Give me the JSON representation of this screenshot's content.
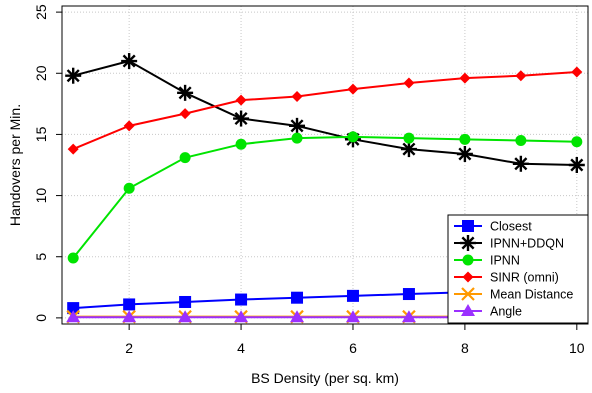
{
  "chart_data": {
    "type": "line",
    "title": "",
    "xlabel": "BS Density (per sq. km)",
    "ylabel": "Handovers per Min.",
    "xlim": [
      0.8,
      10.2
    ],
    "ylim": [
      -0.5,
      25.5
    ],
    "xticks": [
      2,
      4,
      6,
      8,
      10
    ],
    "yticks": [
      0,
      5,
      10,
      15,
      20,
      25
    ],
    "x": [
      1,
      2,
      3,
      4,
      5,
      6,
      7,
      8,
      9,
      10
    ],
    "grid": true,
    "legend_position": "bottom-right",
    "series": [
      {
        "name": "Closest",
        "color": "#0000ff",
        "marker": "square",
        "values": [
          0.8,
          1.1,
          1.3,
          1.5,
          1.65,
          1.8,
          1.95,
          2.1,
          2.25,
          2.4
        ]
      },
      {
        "name": "IPNN+DDQN",
        "color": "#000000",
        "marker": "asterisk",
        "values": [
          19.8,
          21.0,
          18.4,
          16.3,
          15.7,
          14.6,
          13.8,
          13.4,
          12.6,
          12.5
        ]
      },
      {
        "name": "IPNN",
        "color": "#00e400",
        "marker": "circle",
        "values": [
          4.9,
          10.6,
          13.1,
          14.2,
          14.7,
          14.8,
          14.7,
          14.6,
          14.5,
          14.4
        ]
      },
      {
        "name": "SINR (omni)",
        "color": "#ff0000",
        "marker": "diamond",
        "values": [
          13.8,
          15.7,
          16.7,
          17.8,
          18.1,
          18.7,
          19.2,
          19.6,
          19.8,
          20.1
        ]
      },
      {
        "name": "Mean Distance",
        "color": "#ff9900",
        "marker": "x",
        "values": [
          0.1,
          0.1,
          0.1,
          0.1,
          0.1,
          0.1,
          0.1,
          0.1,
          0.1,
          0.1
        ]
      },
      {
        "name": "Angle",
        "color": "#9b30ff",
        "marker": "triangle",
        "values": [
          0.05,
          0.05,
          0.05,
          0.05,
          0.05,
          0.05,
          0.05,
          0.05,
          0.05,
          0.05
        ]
      }
    ]
  }
}
